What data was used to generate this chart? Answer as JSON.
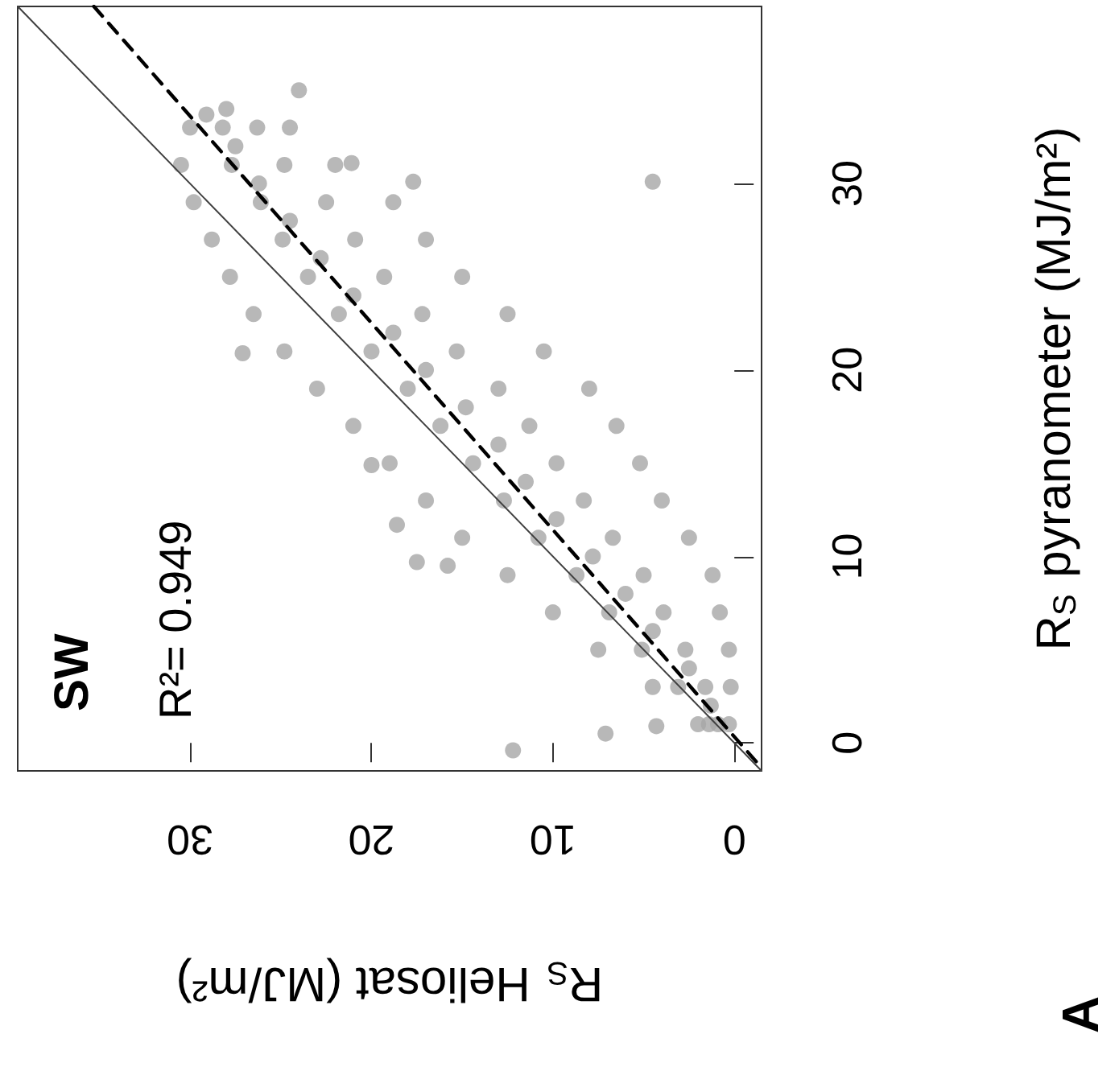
{
  "chart_data": {
    "type": "scatter",
    "xlabel": "R$_{S}$ Heliosat (MJ/m²)",
    "ylabel": "R$_{S}$ pyranometer (MJ/m²)",
    "xlim": [
      39.5,
      -1.5
    ],
    "ylim": [
      -1.5,
      39.5
    ],
    "xticks": [
      0,
      10,
      20,
      30
    ],
    "yticks": [
      0,
      10,
      20,
      30
    ],
    "grid": false,
    "marker": "circle",
    "annotations": [
      "SW",
      "R²= 0.949",
      "A"
    ],
    "series": [
      {
        "color": "#a6a6a6",
        "values": [
          1,
          1,
          1,
          1,
          3,
          3,
          3,
          3,
          5,
          5,
          5,
          5,
          7,
          7,
          7,
          7,
          9,
          9,
          9,
          9,
          11,
          11,
          11,
          11,
          13,
          13,
          13,
          13,
          15,
          15,
          15,
          15,
          17,
          17,
          17,
          17,
          19,
          19,
          19,
          19,
          21,
          21,
          21,
          21,
          23,
          23,
          23,
          23,
          25,
          25,
          25,
          25,
          27,
          27,
          27,
          27,
          29,
          29,
          29,
          29,
          31,
          31,
          31,
          31,
          33,
          33,
          33,
          33,
          2,
          4,
          6,
          8,
          10,
          12,
          14,
          16,
          18,
          20,
          22,
          24,
          26,
          28,
          30,
          32,
          34,
          30.1,
          -0.4,
          0.5,
          0.9,
          9.7,
          9.5,
          11.7,
          14.9,
          20.9,
          35,
          31.1,
          30.1,
          33.7
        ],
        "x": [
          0.3,
          0.9,
          1.4,
          2,
          0.2,
          1.6,
          3.1,
          4.5,
          0.3,
          2.7,
          5.1,
          7.5,
          0.8,
          3.9,
          6.9,
          10,
          1.2,
          5,
          8.7,
          12.5,
          2.5,
          6.7,
          10.8,
          15,
          4,
          8.3,
          12.7,
          17,
          5.2,
          9.8,
          14.4,
          19,
          6.5,
          11.3,
          16.2,
          21,
          8,
          13,
          18,
          23,
          10.5,
          15.3,
          20,
          24.8,
          12.5,
          17.2,
          21.8,
          26.5,
          15,
          19.3,
          23.5,
          27.8,
          17,
          20.9,
          24.9,
          28.8,
          18.8,
          22.5,
          26.1,
          29.8,
          22,
          24.8,
          27.7,
          30.5,
          24.5,
          26.3,
          28.2,
          30,
          1.3,
          2.5,
          4.5,
          6,
          7.8,
          9.8,
          11.5,
          13,
          14.8,
          17,
          18.8,
          21,
          22.8,
          24.5,
          26.2,
          27.5,
          28,
          4.5,
          12.2,
          7.1,
          4.3,
          17.5,
          15.8,
          18.6,
          20,
          27.1,
          24,
          21.1,
          17.7,
          29.1
        ]
      },
      {
        "type": "line",
        "color": "#404040",
        "marker": "none",
        "line_style": "solid",
        "x": [
          -1.5,
          39.5
        ],
        "values": [
          -1.5,
          39.5
        ]
      },
      {
        "type": "line",
        "color": "#000000",
        "marker": "none",
        "line_style": "dashed",
        "x": [
          -1.2,
          35.3
        ],
        "values": [
          -1,
          39.5
        ]
      }
    ]
  }
}
